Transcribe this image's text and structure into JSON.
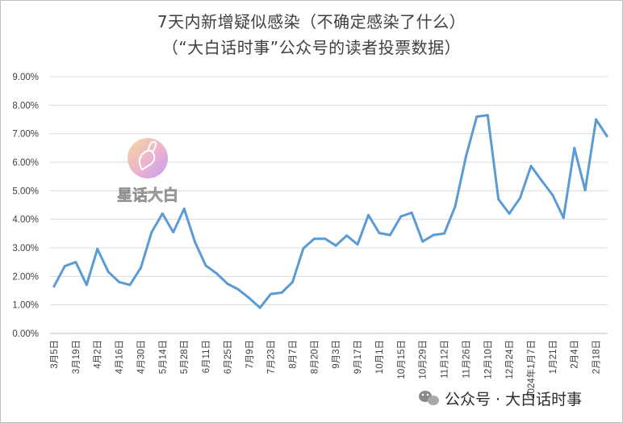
{
  "chart_data": {
    "type": "line",
    "title": "7天内新增疑似感染（不确定感染了什么）",
    "subtitle": "（“大白话时事”公众号的读者投票数据）",
    "ylim": [
      0,
      9
    ],
    "y_tick_labels": [
      "0.00%",
      "1.00%",
      "2.00%",
      "3.00%",
      "4.00%",
      "5.00%",
      "6.00%",
      "7.00%",
      "8.00%",
      "9.00%"
    ],
    "x_tick_labels": [
      "3月5日",
      "3月19日",
      "4月2日",
      "4月16日",
      "4月30日",
      "5月14日",
      "5月28日",
      "6月11日",
      "6月25日",
      "7月9日",
      "7月23日",
      "8月7日",
      "8月20日",
      "9月3日",
      "9月17日",
      "10月1日",
      "10月15日",
      "10月29日",
      "11月12日",
      "11月26日",
      "12月10日",
      "12月24日",
      "2024年1月7日",
      "1月21日",
      "2月4日",
      "2月18日"
    ],
    "grid": true,
    "series": [
      {
        "name": "7天内新增疑似感染",
        "color": "#5b9bd5",
        "values": [
          1.65,
          2.36,
          2.5,
          1.7,
          2.96,
          2.16,
          1.8,
          1.7,
          2.3,
          3.55,
          4.2,
          3.55,
          4.37,
          3.2,
          2.38,
          2.1,
          1.74,
          1.54,
          1.24,
          0.9,
          1.38,
          1.43,
          1.8,
          2.98,
          3.32,
          3.32,
          3.08,
          3.43,
          3.12,
          4.15,
          3.52,
          3.45,
          4.1,
          4.23,
          3.22,
          3.45,
          3.5,
          4.45,
          6.2,
          7.6,
          7.65,
          4.7,
          4.2,
          4.75,
          5.87,
          5.35,
          4.85,
          4.05,
          6.5,
          5.02,
          7.5,
          6.92
        ]
      }
    ]
  },
  "watermark": {
    "text": "星话大白"
  },
  "credit": {
    "text": "公众号 · 大白话时事"
  },
  "colors": {
    "line": "#5b9bd5",
    "grid": "#d9d9d9",
    "axis": "#bfbfbf",
    "text": "#404040"
  }
}
